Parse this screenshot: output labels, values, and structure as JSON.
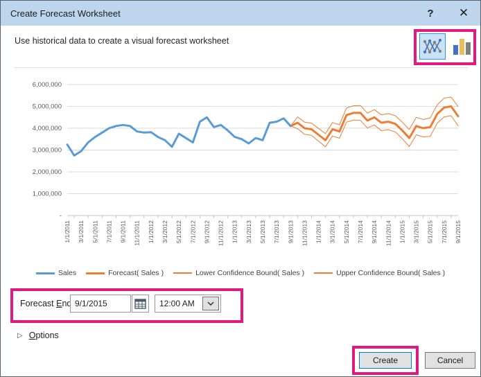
{
  "window": {
    "title": "Create Forecast Worksheet",
    "help_glyph": "?",
    "close_glyph": "✕"
  },
  "subtitle": {
    "text": "Use historical data to create a visual forecast worksheet"
  },
  "chart_type_picker": {
    "line_chart_button": {
      "name": "line-chart-type",
      "selected": true
    },
    "bar_chart_button": {
      "name": "bar-chart-type",
      "selected": false
    }
  },
  "chart_data": {
    "type": "line",
    "title": "",
    "xlabel": "",
    "ylabel": "",
    "ylim": [
      0,
      6000000
    ],
    "grid": true,
    "legend_position": "bottom",
    "y_ticks": [
      "-",
      "1,000,000",
      "2,000,000",
      "3,000,000",
      "4,000,000",
      "5,000,000",
      "6,000,000"
    ],
    "x_labels": [
      "1/1/2011",
      "3/1/2011",
      "5/1/2011",
      "7/1/2011",
      "9/1/2011",
      "11/1/2011",
      "1/1/2012",
      "3/1/2012",
      "5/1/2012",
      "7/1/2012",
      "9/1/2012",
      "11/1/2012",
      "1/1/2013",
      "3/1/2013",
      "5/1/2013",
      "7/1/2013",
      "9/1/2013",
      "11/1/2013",
      "1/1/2014",
      "3/1/2014",
      "5/1/2014",
      "7/1/2014",
      "9/1/2014",
      "11/1/2014",
      "1/1/2015",
      "3/1/2015",
      "5/1/2015",
      "7/1/2015",
      "9/1/2015"
    ],
    "x_points_per_label": 2,
    "series": [
      {
        "name": "Sales",
        "color": "#5B9BD5",
        "width": 3,
        "start_index": 0,
        "values": [
          3250000,
          2750000,
          2950000,
          3350000,
          3600000,
          3800000,
          4000000,
          4100000,
          4150000,
          4100000,
          3850000,
          3800000,
          3820000,
          3600000,
          3450000,
          3150000,
          3750000,
          3550000,
          3350000,
          4300000,
          4500000,
          4050000,
          4150000,
          3900000,
          3600000,
          3500000,
          3300000,
          3550000,
          3450000,
          4250000,
          4300000,
          4450000,
          4100000
        ]
      },
      {
        "name": "Forecast( Sales )",
        "color": "#ED7D31",
        "width": 3,
        "start_index": 32,
        "values": [
          4100000,
          4250000,
          4000000,
          3950000,
          3700000,
          3450000,
          3950000,
          3850000,
          4600000,
          4700000,
          4700000,
          4350000,
          4500000,
          4250000,
          4300000,
          4200000,
          3900000,
          3550000,
          4100000,
          4000000,
          4050000,
          4650000,
          4950000,
          5000000,
          4550000
        ]
      },
      {
        "name": "Lower Confidence Bound( Sales )",
        "color": "#ED7D31",
        "width": 1,
        "start_index": 32,
        "values": [
          4100000,
          3980000,
          3720000,
          3670000,
          3410000,
          3150000,
          3640000,
          3540000,
          4280000,
          4370000,
          4360000,
          4010000,
          4150000,
          3890000,
          3930000,
          3830000,
          3520000,
          3160000,
          3700000,
          3600000,
          3630000,
          4230000,
          4520000,
          4570000,
          4110000
        ]
      },
      {
        "name": "Upper Confidence Bound( Sales )",
        "color": "#ED7D31",
        "width": 1,
        "start_index": 32,
        "values": [
          4100000,
          4520000,
          4280000,
          4230000,
          3990000,
          3750000,
          4260000,
          4160000,
          4920000,
          5030000,
          5040000,
          4690000,
          4850000,
          4610000,
          4670000,
          4570000,
          4280000,
          3940000,
          4500000,
          4400000,
          4470000,
          5070000,
          5380000,
          5430000,
          4990000
        ]
      }
    ]
  },
  "forecast_end": {
    "label_pre": "Forecast ",
    "label_accesskey": "E",
    "label_post": "nd",
    "date_value": "9/1/2015",
    "time_value": "12:00 AM"
  },
  "options": {
    "triangle_glyph": "▷",
    "label_accesskey": "O",
    "label_rest": "ptions"
  },
  "buttons": {
    "create": "Create",
    "cancel": "Cancel"
  },
  "colors": {
    "titlebar": "#BDD6EE",
    "highlight": "#E2197F",
    "sales_line": "#5B9BD5",
    "forecast_line": "#ED7D31",
    "gridline": "#D9D9D9",
    "axis_text": "#595959"
  }
}
